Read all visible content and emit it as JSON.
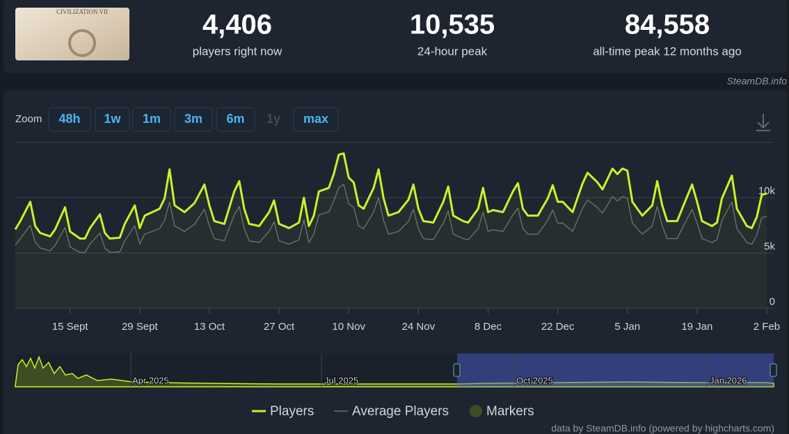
{
  "header": {
    "image_text": "CIVILIZATION VII",
    "stats": [
      {
        "value": "4,406",
        "label": "players right now"
      },
      {
        "value": "10,535",
        "label": "24-hour peak"
      },
      {
        "value": "84,558",
        "label": "all-time peak 12 months ago"
      }
    ],
    "source": "SteamDB.info"
  },
  "zoom": {
    "label": "Zoom",
    "buttons": [
      "48h",
      "1w",
      "1m",
      "3m",
      "6m",
      "1y",
      "max"
    ]
  },
  "chart_data": {
    "type": "line",
    "x": [
      0,
      1,
      3,
      4,
      5,
      7,
      8,
      10,
      11,
      13,
      14,
      15,
      17,
      18,
      19,
      21,
      22,
      24,
      25,
      26,
      29,
      30,
      31,
      32,
      34,
      36,
      38,
      39,
      40,
      42,
      44,
      45,
      46,
      47,
      49,
      51,
      52,
      53,
      55,
      57,
      58,
      59,
      60,
      61,
      63,
      64,
      65,
      66,
      67,
      68,
      69,
      70,
      72,
      73,
      74,
      75,
      77,
      79,
      80,
      81,
      82,
      84,
      86,
      87,
      88,
      90,
      91,
      93,
      94,
      95,
      96,
      98,
      100,
      101,
      102,
      103,
      105,
      107,
      108,
      109,
      110,
      112,
      114,
      115,
      117,
      118,
      120,
      121,
      122,
      123,
      124,
      125,
      126,
      128,
      129,
      130,
      131,
      133,
      134,
      136,
      137,
      138,
      140,
      141,
      142,
      144,
      145,
      147,
      148,
      149,
      150,
      151
    ],
    "xlim": [
      0,
      152.4
    ],
    "xticks": [
      {
        "value": 11,
        "label": "15 Sept"
      },
      {
        "value": 25,
        "label": "29 Sept"
      },
      {
        "value": 39,
        "label": "13 Oct"
      },
      {
        "value": 53,
        "label": "27 Oct"
      },
      {
        "value": 67,
        "label": "10 Nov"
      },
      {
        "value": 81,
        "label": "24 Nov"
      },
      {
        "value": 95,
        "label": "8 Dec"
      },
      {
        "value": 109,
        "label": "22 Dec"
      },
      {
        "value": 123,
        "label": "5 Jan"
      },
      {
        "value": 137,
        "label": "19 Jan"
      },
      {
        "value": 151,
        "label": "2 Feb"
      }
    ],
    "ylim": [
      0,
      15000
    ],
    "yticks": [
      0,
      {
        "value": 5000,
        "label": "5k"
      },
      {
        "value": 10000,
        "label": "10k"
      }
    ],
    "grid": true,
    "series": [
      {
        "name": "Players",
        "color": "#c6f52b",
        "values": [
          7130,
          7880,
          9630,
          7440,
          6810,
          6500,
          7130,
          9130,
          6940,
          6310,
          6310,
          7250,
          8500,
          6810,
          6310,
          6380,
          7630,
          9310,
          7250,
          8380,
          9000,
          9940,
          12560,
          9310,
          8690,
          9500,
          11190,
          9310,
          7880,
          7630,
          10560,
          11500,
          9000,
          7630,
          7440,
          8690,
          9750,
          7630,
          7250,
          7750,
          10000,
          7440,
          8380,
          10560,
          10880,
          12130,
          13880,
          14000,
          11810,
          11380,
          9310,
          9000,
          10880,
          12560,
          9940,
          8380,
          8690,
          9810,
          11190,
          9000,
          7880,
          7750,
          9630,
          11000,
          8380,
          7880,
          7750,
          9000,
          10880,
          8690,
          8880,
          8690,
          10560,
          11310,
          9000,
          8380,
          8380,
          9940,
          11130,
          9630,
          9630,
          8690,
          11310,
          12250,
          11380,
          10750,
          12630,
          12130,
          12630,
          12440,
          9630,
          9000,
          8380,
          9310,
          11500,
          9310,
          7880,
          7880,
          9000,
          11190,
          9630,
          7880,
          7440,
          7750,
          9940,
          12000,
          9000,
          7440,
          7250,
          8250,
          10250,
          10380
        ]
      },
      {
        "name": "Average Players",
        "color": "#6b7078",
        "values": [
          5700,
          6300,
          7500,
          6000,
          5450,
          5200,
          5700,
          7300,
          5550,
          5050,
          5050,
          5800,
          6800,
          5450,
          5050,
          5100,
          6100,
          7450,
          5800,
          6700,
          7200,
          7950,
          9600,
          7450,
          6950,
          7600,
          8950,
          7450,
          6300,
          6100,
          8450,
          9200,
          7200,
          6100,
          5950,
          6950,
          7800,
          6100,
          5800,
          6200,
          8000,
          5950,
          6700,
          8450,
          8700,
          9700,
          10900,
          11200,
          9450,
          9100,
          7450,
          7200,
          8700,
          10000,
          7950,
          6700,
          6950,
          7850,
          8950,
          7200,
          6300,
          6200,
          7700,
          8800,
          6700,
          6300,
          6200,
          7200,
          8700,
          6950,
          7100,
          6950,
          8450,
          9050,
          7200,
          6700,
          6700,
          7950,
          8900,
          7700,
          7700,
          6950,
          9050,
          9800,
          9100,
          8600,
          10100,
          9700,
          10100,
          9950,
          7700,
          7200,
          6700,
          7450,
          9200,
          7450,
          6300,
          6300,
          7200,
          8950,
          7700,
          6300,
          5950,
          6200,
          7950,
          9600,
          7200,
          5950,
          5800,
          6600,
          8200,
          8300
        ]
      }
    ]
  },
  "legend_markers": "Markers",
  "navigator": {
    "labels": [
      "Apr 2025",
      "Jul 2025",
      "Oct 2025",
      "Jan 2026"
    ]
  },
  "credit": "data by SteamDB.info (powered by highcharts.com)"
}
